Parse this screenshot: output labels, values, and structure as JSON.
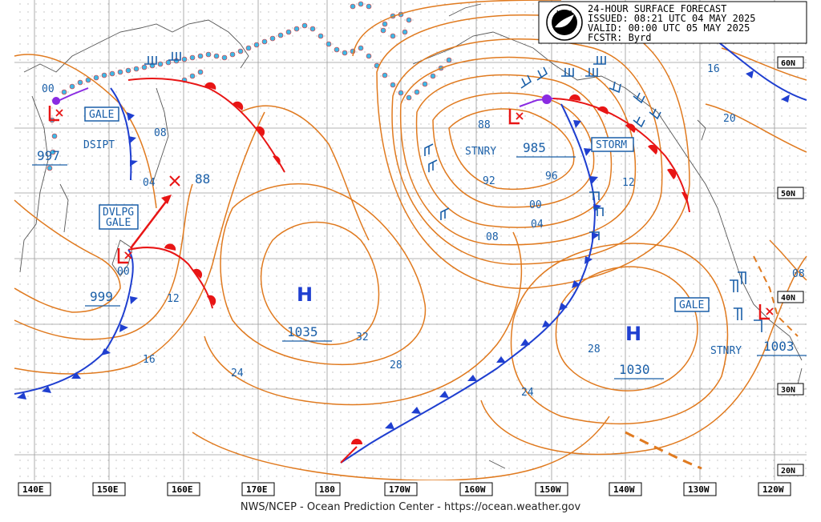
{
  "header": {
    "line1": "24-HOUR SURFACE FORECAST",
    "line2": "ISSUED: 08:21 UTC 04 MAY 2025",
    "line3": "VALID:  00:00 UTC 05 MAY 2025",
    "line4": "FCSTR:  Byrd",
    "logo_text": "NOAA"
  },
  "footer": "NWS/NCEP - Ocean Prediction Center - https://ocean.weather.gov",
  "longitudes": [
    "140E",
    "150E",
    "160E",
    "170E",
    "180",
    "170W",
    "160W",
    "150W",
    "140W",
    "130W",
    "120W"
  ],
  "latitudes": [
    "60N",
    "50N",
    "40N",
    "30N",
    "20N"
  ],
  "highs": [
    {
      "letter": "H",
      "pressure": "1035"
    },
    {
      "letter": "H",
      "pressure": "1030"
    }
  ],
  "lows": [
    {
      "pressure": "997"
    },
    {
      "pressure": "999"
    },
    {
      "pressure": "985"
    },
    {
      "pressure": "1003"
    }
  ],
  "warnings": {
    "gale_w": "GALE",
    "dvlpg": "DVLPG",
    "dvlpg_gale": "GALE",
    "storm": "STORM",
    "gale_e": "GALE"
  },
  "texts": {
    "dsipt": "DSIPT",
    "stnry1": "STNRY",
    "stnry2": "STNRY",
    "new_low": "88"
  },
  "isobar_labels": {
    "l00a": "00",
    "l08a": "08",
    "l04a": "04",
    "l00b": "00",
    "l12a": "12",
    "l16a": "16",
    "l24a": "24",
    "l32": "32",
    "l28a": "28",
    "l88": "88",
    "l92": "92",
    "l96": "96",
    "l00c": "00",
    "l04b": "04",
    "l08b": "08",
    "l12b": "12",
    "l16b": "16",
    "l20": "20",
    "l28b": "28",
    "l24b": "24",
    "l08c": "08"
  },
  "colors": {
    "isobar": "#e07a1f",
    "cold_front": "#1f3fd0",
    "warm_front": "#e81515",
    "occluded": "#8a2be2",
    "ice": "#3fb8e6",
    "label": "#1a5fa8",
    "grid": "#b0b0b0"
  }
}
